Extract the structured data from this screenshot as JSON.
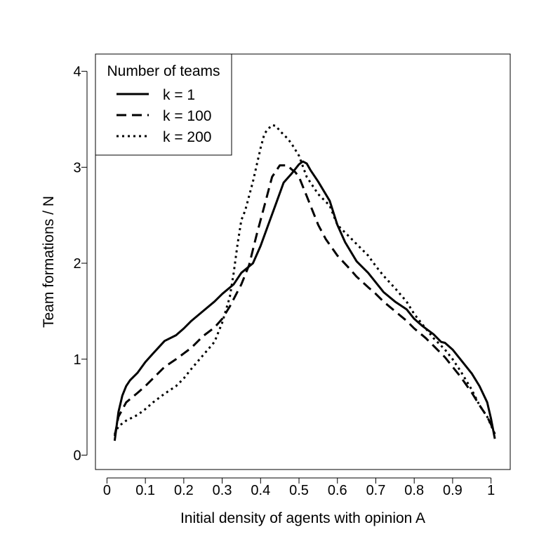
{
  "chart_data": {
    "type": "line",
    "title": "",
    "xlabel": "Initial density of agents with opinion A",
    "ylabel": "Team formations / N",
    "xlim": [
      -0.03,
      1.05
    ],
    "ylim": [
      -0.15,
      4.18
    ],
    "xticks": [
      0,
      0.1,
      0.2,
      0.3,
      0.4,
      0.5,
      0.6,
      0.7,
      0.8,
      0.9,
      1
    ],
    "xtick_labels": [
      "0",
      "0.1",
      "0.2",
      "0.3",
      "0.4",
      "0.5",
      "0.6",
      "0.7",
      "0.8",
      "0.9",
      "1"
    ],
    "yticks": [
      0,
      1,
      2,
      3,
      4
    ],
    "ytick_labels": [
      "0",
      "1",
      "2",
      "3",
      "4"
    ],
    "grid": false,
    "legend": {
      "title": "Number of teams",
      "position": "top-left"
    },
    "series": [
      {
        "name": "k = 1",
        "style": "solid",
        "x": [
          0.02,
          0.03,
          0.04,
          0.05,
          0.06,
          0.08,
          0.1,
          0.12,
          0.15,
          0.18,
          0.2,
          0.22,
          0.25,
          0.28,
          0.3,
          0.33,
          0.35,
          0.38,
          0.4,
          0.42,
          0.44,
          0.46,
          0.48,
          0.5,
          0.51,
          0.52,
          0.53,
          0.55,
          0.58,
          0.6,
          0.62,
          0.65,
          0.68,
          0.7,
          0.72,
          0.75,
          0.78,
          0.8,
          0.82,
          0.85,
          0.87,
          0.88,
          0.9,
          0.92,
          0.95,
          0.97,
          0.99,
          1.0,
          1.01
        ],
        "y": [
          0.15,
          0.45,
          0.62,
          0.72,
          0.78,
          0.86,
          0.97,
          1.06,
          1.19,
          1.25,
          1.32,
          1.4,
          1.5,
          1.6,
          1.68,
          1.78,
          1.9,
          2.0,
          2.18,
          2.4,
          2.62,
          2.84,
          2.93,
          3.03,
          3.06,
          3.04,
          2.97,
          2.85,
          2.65,
          2.4,
          2.22,
          2.02,
          1.9,
          1.8,
          1.7,
          1.6,
          1.52,
          1.42,
          1.35,
          1.26,
          1.18,
          1.17,
          1.1,
          1.0,
          0.85,
          0.72,
          0.55,
          0.38,
          0.17
        ]
      },
      {
        "name": "k = 100",
        "style": "dashed",
        "x": [
          0.02,
          0.03,
          0.05,
          0.08,
          0.1,
          0.12,
          0.15,
          0.18,
          0.2,
          0.22,
          0.25,
          0.28,
          0.3,
          0.32,
          0.35,
          0.37,
          0.39,
          0.41,
          0.43,
          0.45,
          0.47,
          0.48,
          0.49,
          0.5,
          0.52,
          0.55,
          0.57,
          0.6,
          0.63,
          0.65,
          0.68,
          0.7,
          0.72,
          0.75,
          0.78,
          0.8,
          0.83,
          0.85,
          0.88,
          0.9,
          0.92,
          0.95,
          0.97,
          0.99,
          1.0,
          1.01
        ],
        "y": [
          0.2,
          0.4,
          0.55,
          0.65,
          0.72,
          0.8,
          0.92,
          1.0,
          1.06,
          1.12,
          1.24,
          1.33,
          1.42,
          1.55,
          1.78,
          1.98,
          2.3,
          2.6,
          2.9,
          3.02,
          3.02,
          2.98,
          2.95,
          2.9,
          2.7,
          2.4,
          2.25,
          2.08,
          1.95,
          1.86,
          1.75,
          1.68,
          1.6,
          1.5,
          1.4,
          1.32,
          1.22,
          1.14,
          1.02,
          0.92,
          0.82,
          0.65,
          0.52,
          0.4,
          0.32,
          0.22
        ]
      },
      {
        "name": "k = 200",
        "style": "dotted",
        "x": [
          0.02,
          0.03,
          0.05,
          0.08,
          0.1,
          0.12,
          0.15,
          0.18,
          0.2,
          0.22,
          0.25,
          0.28,
          0.3,
          0.32,
          0.33,
          0.34,
          0.35,
          0.36,
          0.38,
          0.4,
          0.41,
          0.42,
          0.43,
          0.44,
          0.45,
          0.47,
          0.48,
          0.5,
          0.52,
          0.55,
          0.58,
          0.6,
          0.63,
          0.65,
          0.68,
          0.7,
          0.72,
          0.75,
          0.78,
          0.8,
          0.83,
          0.85,
          0.88,
          0.9,
          0.92,
          0.95,
          0.97,
          0.99,
          1.01
        ],
        "y": [
          0.22,
          0.3,
          0.36,
          0.42,
          0.48,
          0.55,
          0.64,
          0.72,
          0.8,
          0.9,
          1.04,
          1.18,
          1.38,
          1.65,
          1.9,
          2.2,
          2.45,
          2.55,
          2.85,
          3.2,
          3.35,
          3.4,
          3.44,
          3.43,
          3.38,
          3.3,
          3.25,
          3.12,
          2.9,
          2.72,
          2.6,
          2.4,
          2.28,
          2.2,
          2.08,
          1.97,
          1.87,
          1.74,
          1.6,
          1.47,
          1.32,
          1.22,
          1.1,
          1.0,
          0.88,
          0.68,
          0.52,
          0.4,
          0.22
        ]
      }
    ]
  }
}
